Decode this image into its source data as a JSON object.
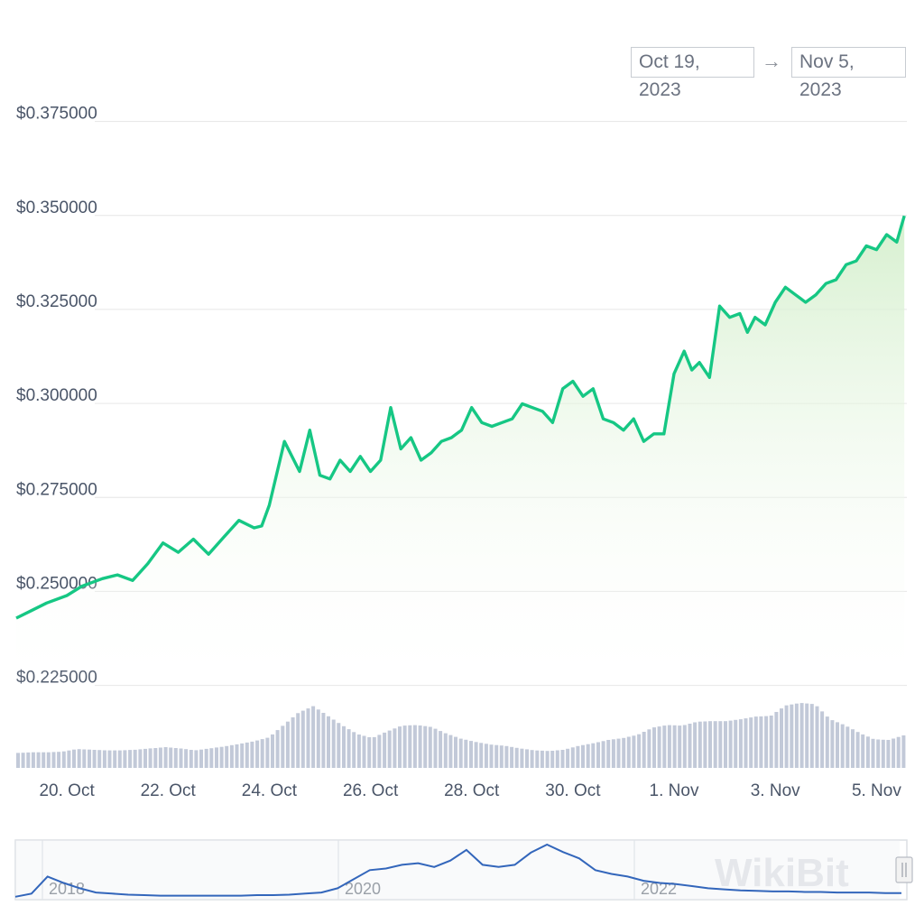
{
  "date_range": {
    "from": "Oct 19, 2023",
    "arrow": "→",
    "to": "Nov 5, 2023"
  },
  "watermark": "WikiBit",
  "colors": {
    "line": "#16c784",
    "area_top": "#d4efcc",
    "volume": "#c2c9d8",
    "grid": "#e6e6e6",
    "navigator_line": "#3366bb"
  },
  "chart_data": {
    "type": "line",
    "title": "",
    "xlabel": "",
    "ylabel": "",
    "ylim": [
      0.2225,
      0.3785
    ],
    "yticks": [
      "$0.375000",
      "$0.350000",
      "$0.325000",
      "$0.300000",
      "$0.275000",
      "$0.250000",
      "$0.225000"
    ],
    "ytick_values": [
      0.375,
      0.35,
      0.325,
      0.3,
      0.275,
      0.25,
      0.225
    ],
    "xticks": [
      "20. Oct",
      "22. Oct",
      "24. Oct",
      "26. Oct",
      "28. Oct",
      "30. Oct",
      "1. Nov",
      "3. Nov",
      "5. Nov"
    ],
    "xtick_days": [
      1,
      3,
      5,
      7,
      9,
      11,
      13,
      15,
      17
    ],
    "xlim_days": [
      0,
      17.6
    ],
    "x_days": [
      0,
      0.3,
      0.6,
      1.0,
      1.3,
      1.7,
      2.0,
      2.3,
      2.6,
      2.9,
      3.2,
      3.5,
      3.8,
      4.1,
      4.4,
      4.7,
      4.85,
      5.0,
      5.3,
      5.6,
      5.8,
      6.0,
      6.2,
      6.4,
      6.6,
      6.8,
      7.0,
      7.2,
      7.4,
      7.6,
      7.8,
      8.0,
      8.2,
      8.4,
      8.6,
      8.8,
      9.0,
      9.2,
      9.4,
      9.6,
      9.8,
      10.0,
      10.2,
      10.4,
      10.6,
      10.8,
      11.0,
      11.2,
      11.4,
      11.6,
      11.8,
      12.0,
      12.2,
      12.4,
      12.6,
      12.8,
      13.0,
      13.2,
      13.35,
      13.5,
      13.7,
      13.9,
      14.1,
      14.3,
      14.45,
      14.6,
      14.8,
      15.0,
      15.2,
      15.4,
      15.6,
      15.8,
      16.0,
      16.2,
      16.4,
      16.6,
      16.8,
      17.0,
      17.2,
      17.4,
      17.55
    ],
    "series": [
      {
        "values": [
          0.2405,
          0.2425,
          0.2445,
          0.2465,
          0.249,
          0.251,
          0.252,
          0.2505,
          0.255,
          0.2605,
          0.258,
          0.2615,
          0.2575,
          0.262,
          0.2665,
          0.2645,
          0.265,
          0.2705,
          0.2875,
          0.2795,
          0.2905,
          0.2785,
          0.2775,
          0.2825,
          0.2795,
          0.2835,
          0.2795,
          0.2825,
          0.2965,
          0.2855,
          0.2885,
          0.2825,
          0.2845,
          0.2875,
          0.2885,
          0.2905,
          0.2965,
          0.2925,
          0.2915,
          0.2925,
          0.2935,
          0.2975,
          0.2965,
          0.2955,
          0.2925,
          0.3015,
          0.3035,
          0.2995,
          0.3015,
          0.2935,
          0.2925,
          0.2905,
          0.2935,
          0.2875,
          0.2895,
          0.2895,
          0.3055,
          0.3115,
          0.3065,
          0.3085,
          0.3045,
          0.3235,
          0.3205,
          0.3215,
          0.3165,
          0.3205,
          0.3185,
          0.3245,
          0.3285,
          0.3265,
          0.3245,
          0.3265,
          0.3295,
          0.3305,
          0.3345,
          0.3355,
          0.3395,
          0.3385,
          0.3425,
          0.3405,
          0.3475
        ]
      }
    ],
    "volume_relative": [
      0.23,
      0.24,
      0.24,
      0.25,
      0.29,
      0.28,
      0.27,
      0.27,
      0.28,
      0.3,
      0.32,
      0.3,
      0.27,
      0.3,
      0.33,
      0.37,
      0.41,
      0.47,
      0.66,
      0.85,
      0.95,
      0.8,
      0.65,
      0.52,
      0.46,
      0.56,
      0.65,
      0.66,
      0.63,
      0.53,
      0.45,
      0.4,
      0.36,
      0.34,
      0.3,
      0.27,
      0.26,
      0.28,
      0.34,
      0.38,
      0.43,
      0.46,
      0.51,
      0.62,
      0.66,
      0.65,
      0.71,
      0.72,
      0.72,
      0.75,
      0.79,
      0.8,
      0.96,
      1.0,
      0.98,
      0.75,
      0.66,
      0.54,
      0.44,
      0.43,
      0.5
    ],
    "navigator": {
      "labels": [
        "2018",
        "2020",
        "2022"
      ],
      "values": [
        0.02,
        0.08,
        0.4,
        0.28,
        0.18,
        0.1,
        0.08,
        0.06,
        0.05,
        0.04,
        0.04,
        0.04,
        0.04,
        0.04,
        0.04,
        0.05,
        0.05,
        0.06,
        0.08,
        0.1,
        0.18,
        0.35,
        0.52,
        0.55,
        0.62,
        0.65,
        0.58,
        0.7,
        0.9,
        0.62,
        0.58,
        0.62,
        0.85,
        1.0,
        0.86,
        0.74,
        0.52,
        0.45,
        0.4,
        0.32,
        0.28,
        0.26,
        0.22,
        0.18,
        0.16,
        0.14,
        0.13,
        0.12,
        0.12,
        0.11,
        0.11,
        0.1,
        0.1,
        0.1,
        0.09,
        0.09
      ]
    }
  }
}
